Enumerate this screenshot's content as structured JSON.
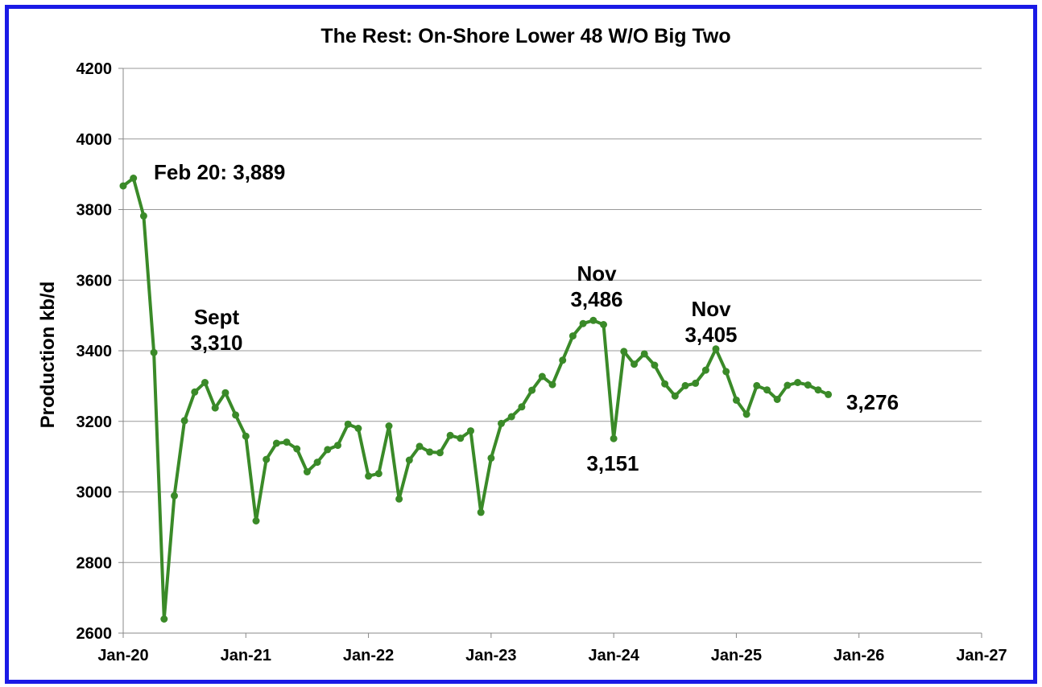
{
  "chart_data": {
    "type": "line",
    "title": "The Rest: On-Shore Lower 48 W/O Big Two",
    "xlabel": "",
    "ylabel": "Production kb/d",
    "ylim": [
      2600,
      4200
    ],
    "yticks": [
      "2600",
      "2800",
      "3000",
      "3200",
      "3400",
      "3600",
      "3800",
      "4000",
      "4200"
    ],
    "xticks": [
      "Jan-20",
      "Jan-21",
      "Jan-22",
      "Jan-23",
      "Jan-24",
      "Jan-25",
      "Jan-26",
      "Jan-27"
    ],
    "grid": true,
    "legend": "none",
    "colors": {
      "line": "#3a8a28",
      "grid": "#999999",
      "border": "#1a1ae6"
    },
    "series": [
      {
        "x_start": "2020-01",
        "values": [
          3867,
          3889,
          3782,
          3395,
          2640,
          2989,
          3202,
          3283,
          3310,
          3238,
          3281,
          3218,
          3158,
          2918,
          3092,
          3138,
          3141,
          3122,
          3057,
          3084,
          3120,
          3132,
          3192,
          3180,
          3045,
          3052,
          3187,
          2980,
          3090,
          3129,
          3113,
          3111,
          3160,
          3152,
          3173,
          2942,
          3096,
          3194,
          3213,
          3241,
          3288,
          3327,
          3304,
          3373,
          3442,
          3477,
          3486,
          3474,
          3151,
          3398,
          3362,
          3391,
          3359,
          3306,
          3272,
          3301,
          3308,
          3345,
          3405,
          3341,
          3260,
          3220,
          3301,
          3289,
          3262,
          3302,
          3310,
          3303,
          3289,
          3276
        ]
      }
    ],
    "annotations": [
      {
        "lines": [
          "Feb 20: 3,889"
        ]
      },
      {
        "lines": [
          "Sept",
          "3,310"
        ]
      },
      {
        "lines": [
          "Nov",
          "3,486"
        ]
      },
      {
        "lines": [
          "3,151"
        ]
      },
      {
        "lines": [
          "Nov",
          "3,405"
        ]
      },
      {
        "lines": [
          "3,276"
        ]
      }
    ]
  }
}
